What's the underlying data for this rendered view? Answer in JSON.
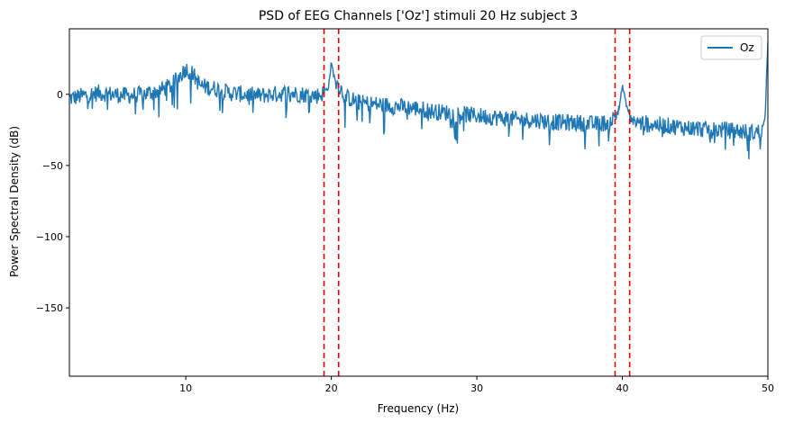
{
  "chart_data": {
    "type": "line",
    "title": "PSD of EEG Channels ['Oz'] stimuli 20 Hz subject 3",
    "xlabel": "Frequency (Hz)",
    "ylabel": "Power Spectral Density (dB)",
    "xlim": [
      2,
      50
    ],
    "ylim": [
      -198,
      46
    ],
    "xticks": [
      10,
      20,
      30,
      40,
      50
    ],
    "yticks": [
      0,
      -50,
      -100,
      -150
    ],
    "xtick_labels": [
      "10",
      "20",
      "30",
      "40",
      "50"
    ],
    "ytick_labels": [
      "0",
      "−50",
      "−100",
      "−150"
    ],
    "grid": false,
    "legend": {
      "location": "upper right",
      "entries": [
        "Oz"
      ]
    },
    "series": [
      {
        "name": "Oz",
        "color": "#1f77b4",
        "x": [
          2,
          3,
          4,
          5,
          6,
          7,
          8,
          9,
          9.5,
          10,
          10.5,
          11,
          12,
          13,
          14,
          15,
          16,
          17,
          18,
          19,
          19.5,
          19.8,
          20,
          20.2,
          20.5,
          21,
          22,
          23,
          24,
          25,
          26,
          27,
          28,
          29,
          30,
          31,
          32,
          33,
          34,
          35,
          36,
          37,
          38,
          39,
          39.5,
          39.8,
          40,
          40.2,
          40.5,
          41,
          42,
          43,
          44,
          45,
          46,
          47,
          48,
          49,
          49.5,
          49.8,
          50
        ],
        "y": [
          -3,
          -1,
          1,
          0,
          -1,
          0,
          2,
          6,
          12,
          18,
          14,
          6,
          4,
          1,
          0,
          -1,
          0,
          1,
          0,
          -1,
          1,
          5,
          22,
          12,
          6,
          -2,
          -6,
          -7,
          -8,
          -9,
          -10,
          -12,
          -13,
          -14,
          -15,
          -16,
          -17,
          -18,
          -18,
          -19,
          -20,
          -20,
          -21,
          -20,
          -16,
          -8,
          6,
          -4,
          -16,
          -20,
          -21,
          -22,
          -23,
          -24,
          -25,
          -25,
          -26,
          -27,
          -26,
          -18,
          38
        ]
      }
    ],
    "vlines": {
      "color": "#e50000",
      "style": "dashed",
      "x": [
        19.5,
        20.5,
        39.5,
        40.5
      ]
    }
  }
}
